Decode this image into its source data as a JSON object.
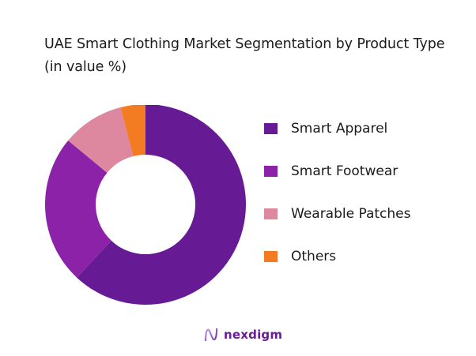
{
  "title": "UAE Smart Clothing Market Segmentation by Product Type (in value %)",
  "legend": [
    {
      "label": "Smart Apparel",
      "color": "#661a93"
    },
    {
      "label": "Smart Footwear",
      "color": "#8c22a8"
    },
    {
      "label": "Wearable Patches",
      "color": "#de88a0"
    },
    {
      "label": "Others",
      "color": "#f37c22"
    }
  ],
  "logo": {
    "text": "nexdigm",
    "color": "#6a1b9a"
  },
  "chart_data": {
    "type": "pie",
    "subtype": "donut",
    "title": "UAE Smart Clothing Market Segmentation by Product Type (in value %)",
    "categories": [
      "Smart Apparel",
      "Smart Footwear",
      "Wearable Patches",
      "Others"
    ],
    "values": [
      62,
      24,
      10,
      4
    ],
    "colors": [
      "#661a93",
      "#8c22a8",
      "#de88a0",
      "#f37c22"
    ],
    "unit": "%",
    "legend_position": "right",
    "start_angle": "12 o'clock, clockwise",
    "data_labels": false
  }
}
